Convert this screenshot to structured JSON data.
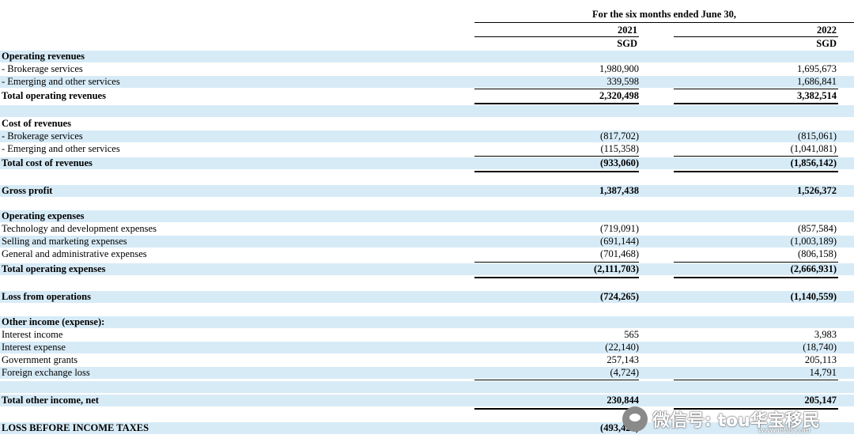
{
  "header": {
    "period": "For the six months ended June 30,",
    "columns": [
      {
        "year": "2021",
        "currency": "SGD"
      },
      {
        "year": "2022",
        "currency": "SGD"
      }
    ]
  },
  "rows": [
    {
      "label": "Operating revenues",
      "v2021": "",
      "v2022": ""
    },
    {
      "label": "- Brokerage services",
      "v2021": "1,980,900",
      "v2022": "1,695,673"
    },
    {
      "label": "- Emerging and other services",
      "v2021": "339,598",
      "v2022": "1,686,841"
    },
    {
      "label": "Total operating revenues",
      "v2021": "2,320,498",
      "v2022": "3,382,514"
    },
    {
      "label": "Cost of revenues",
      "v2021": "",
      "v2022": ""
    },
    {
      "label": "- Brokerage services",
      "v2021": "(817,702)",
      "v2022": "(815,061)"
    },
    {
      "label": "- Emerging and other services",
      "v2021": "(115,358)",
      "v2022": "(1,041,081)"
    },
    {
      "label": "Total cost of revenues",
      "v2021": "(933,060)",
      "v2022": "(1,856,142)"
    },
    {
      "label": "Gross profit",
      "v2021": "1,387,438",
      "v2022": "1,526,372"
    },
    {
      "label": "Operating expenses",
      "v2021": "",
      "v2022": ""
    },
    {
      "label": "Technology and development expenses",
      "v2021": "(719,091)",
      "v2022": "(857,584)"
    },
    {
      "label": "Selling and marketing expenses",
      "v2021": "(691,144)",
      "v2022": "(1,003,189)"
    },
    {
      "label": "General and administrative expenses",
      "v2021": "(701,468)",
      "v2022": "(806,158)"
    },
    {
      "label": "Total operating expenses",
      "v2021": "(2,111,703)",
      "v2022": "(2,666,931)"
    },
    {
      "label": "Loss from operations",
      "v2021": "(724,265)",
      "v2022": "(1,140,559)"
    },
    {
      "label": "Other income (expense):",
      "v2021": "",
      "v2022": ""
    },
    {
      "label": "Interest income",
      "v2021": "565",
      "v2022": "3,983"
    },
    {
      "label": "Interest expense",
      "v2021": "(22,140)",
      "v2022": "(18,740)"
    },
    {
      "label": "Government grants",
      "v2021": "257,143",
      "v2022": "205,113"
    },
    {
      "label": "Foreign exchange loss",
      "v2021": "(4,724)",
      "v2022": "14,791"
    },
    {
      "label": "Total other income, net",
      "v2021": "230,844",
      "v2022": "205,147"
    },
    {
      "label": "LOSS BEFORE INCOME TAXES",
      "v2021": "(493,421)",
      "v2022": ""
    }
  ],
  "watermark": {
    "text": "微信号: tou华宝移民",
    "url": "www.ihb8.com"
  },
  "colors": {
    "row_shade": "#d7ebf7"
  }
}
